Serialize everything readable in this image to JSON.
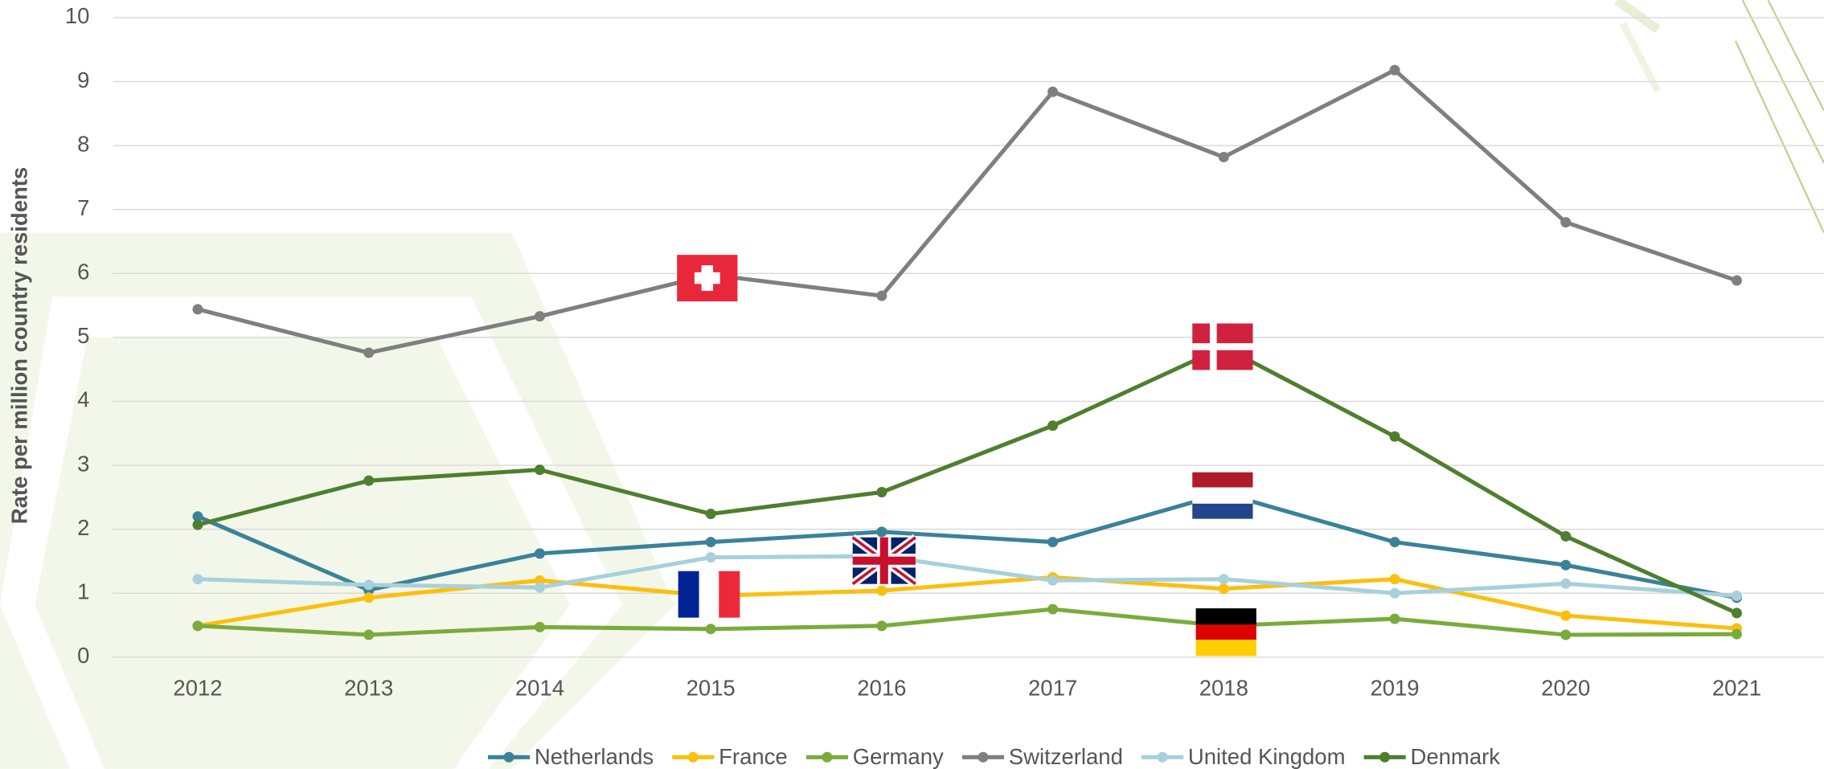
{
  "chart_data": {
    "type": "line",
    "y_label": "Rate per million country residents",
    "x": [
      "2012",
      "2013",
      "2014",
      "2015",
      "2016",
      "2017",
      "2018",
      "2019",
      "2020",
      "2021"
    ],
    "ylim": [
      0,
      10
    ],
    "yticks": [
      0,
      1,
      2,
      3,
      4,
      5,
      6,
      7,
      8,
      9,
      10
    ],
    "grid": true,
    "legend": "bottom",
    "series": [
      {
        "name": "Netherlands",
        "color": "#3a8299",
        "values": [
          2.2,
          1.05,
          1.62,
          1.8,
          1.96,
          1.8,
          2.56,
          1.8,
          1.44,
          0.93
        ]
      },
      {
        "name": "France",
        "color": "#fbbf0e",
        "values": [
          0.49,
          0.93,
          1.2,
          0.96,
          1.04,
          1.25,
          1.07,
          1.22,
          0.65,
          0.45
        ]
      },
      {
        "name": "Germany",
        "color": "#7aab3a",
        "values": [
          0.49,
          0.35,
          0.47,
          0.44,
          0.49,
          0.75,
          0.49,
          0.6,
          0.35,
          0.36
        ]
      },
      {
        "name": "Switzerland",
        "color": "#7f7f7f",
        "values": [
          5.44,
          4.76,
          5.33,
          5.98,
          5.65,
          8.84,
          7.82,
          9.18,
          6.8,
          5.89
        ]
      },
      {
        "name": "United Kingdom",
        "color": "#a8d0dc",
        "values": [
          1.22,
          1.13,
          1.09,
          1.56,
          1.58,
          1.2,
          1.22,
          1.0,
          1.15,
          0.96
        ]
      },
      {
        "name": "Denmark",
        "color": "#4e7f2e",
        "values": [
          2.07,
          2.76,
          2.93,
          2.24,
          2.58,
          3.62,
          4.85,
          3.45,
          1.89,
          0.69
        ]
      }
    ]
  }
}
